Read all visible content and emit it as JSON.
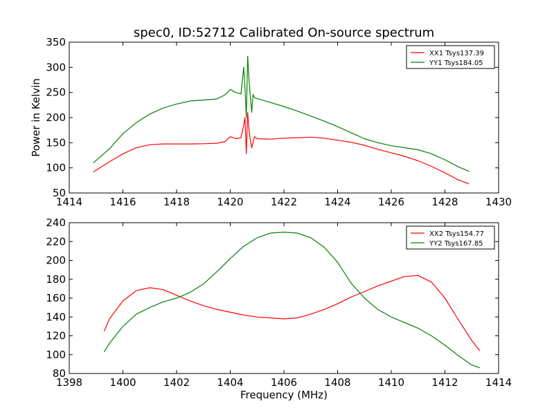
{
  "title": "spec0, ID:52712 Calibrated On-source spectrum",
  "colors": {
    "red": "#ff0000",
    "green": "#008000"
  },
  "chart_data": [
    {
      "type": "line",
      "title": "spec0, ID:52712 Calibrated On-source spectrum",
      "xlabel": "",
      "ylabel": "Power in Kelvin",
      "xlim": [
        1414,
        1430
      ],
      "ylim": [
        50,
        350
      ],
      "xticks": [
        1414,
        1416,
        1418,
        1420,
        1422,
        1424,
        1426,
        1428,
        1430
      ],
      "yticks": [
        50,
        100,
        150,
        200,
        250,
        300,
        350
      ],
      "legend": "top-right",
      "series": [
        {
          "name": "XX1 Tsys137.39",
          "color": "#ff0000",
          "x": [
            1414.9,
            1415.5,
            1416.0,
            1416.5,
            1417.0,
            1417.5,
            1418.0,
            1418.5,
            1419.0,
            1419.5,
            1419.8,
            1420.0,
            1420.2,
            1420.4,
            1420.5,
            1420.55,
            1420.6,
            1420.65,
            1420.7,
            1420.75,
            1420.8,
            1420.85,
            1420.9,
            1421.0,
            1421.5,
            1422.0,
            1422.5,
            1423.0,
            1423.5,
            1424.0,
            1424.5,
            1425.0,
            1425.5,
            1426.0,
            1426.5,
            1427.0,
            1427.5,
            1428.0,
            1428.5,
            1428.9
          ],
          "y": [
            92,
            112,
            128,
            140,
            146,
            147.5,
            147.5,
            147.5,
            148,
            149,
            152,
            162,
            158,
            160,
            185,
            200,
            128,
            210,
            175,
            155,
            140,
            150,
            162,
            158,
            157,
            159,
            160,
            161,
            159,
            155,
            151,
            145,
            137,
            130,
            123,
            114,
            103,
            90,
            76,
            68
          ]
        },
        {
          "name": "YY1 Tsys184.05",
          "color": "#008000",
          "x": [
            1414.9,
            1415.5,
            1416.0,
            1416.5,
            1417.0,
            1417.5,
            1418.0,
            1418.5,
            1419.0,
            1419.5,
            1419.8,
            1420.0,
            1420.2,
            1420.4,
            1420.5,
            1420.55,
            1420.6,
            1420.65,
            1420.7,
            1420.75,
            1420.8,
            1420.85,
            1420.9,
            1421.0,
            1421.5,
            1422.0,
            1422.5,
            1423.0,
            1423.5,
            1424.0,
            1424.5,
            1425.0,
            1425.5,
            1426.0,
            1426.5,
            1427.0,
            1427.5,
            1428.0,
            1428.5,
            1428.9
          ],
          "y": [
            110,
            138,
            168,
            190,
            207,
            219,
            227,
            233,
            235,
            237,
            245,
            256,
            250,
            247,
            300,
            260,
            200,
            322,
            275,
            240,
            210,
            246,
            240,
            238,
            230,
            222,
            213,
            203,
            193,
            182,
            170,
            158,
            150,
            144,
            140,
            136,
            128,
            116,
            102,
            93
          ]
        }
      ]
    },
    {
      "type": "line",
      "title": "",
      "xlabel": "Frequency (MHz)",
      "ylabel": "",
      "xlim": [
        1398,
        1414
      ],
      "ylim": [
        80,
        240
      ],
      "xticks": [
        1398,
        1400,
        1402,
        1404,
        1406,
        1408,
        1410,
        1412,
        1414
      ],
      "yticks": [
        80,
        100,
        120,
        140,
        160,
        180,
        200,
        220,
        240
      ],
      "legend": "top-right",
      "series": [
        {
          "name": "XX2 Tsys154.77",
          "color": "#ff0000",
          "x": [
            1399.3,
            1399.5,
            1400.0,
            1400.5,
            1401.0,
            1401.5,
            1402.0,
            1402.5,
            1403.0,
            1403.5,
            1404.0,
            1404.5,
            1405.0,
            1405.5,
            1406.0,
            1406.5,
            1407.0,
            1407.5,
            1408.0,
            1408.5,
            1409.0,
            1409.5,
            1410.0,
            1410.5,
            1411.0,
            1411.5,
            1412.0,
            1412.5,
            1413.0,
            1413.3
          ],
          "y": [
            125,
            138,
            157,
            168,
            171,
            169,
            163,
            157,
            152,
            148,
            145,
            142,
            140,
            139,
            138,
            139,
            143,
            148,
            154,
            161,
            167,
            173,
            178,
            183,
            184,
            177,
            160,
            137,
            115,
            104
          ]
        },
        {
          "name": "YY2 Tsys167.85",
          "color": "#008000",
          "x": [
            1399.3,
            1399.5,
            1400.0,
            1400.5,
            1401.0,
            1401.5,
            1402.0,
            1402.5,
            1403.0,
            1403.5,
            1404.0,
            1404.5,
            1405.0,
            1405.5,
            1406.0,
            1406.5,
            1407.0,
            1407.5,
            1408.0,
            1408.5,
            1409.0,
            1409.5,
            1410.0,
            1410.5,
            1411.0,
            1411.5,
            1412.0,
            1412.5,
            1413.0,
            1413.3
          ],
          "y": [
            103,
            112,
            130,
            143,
            150,
            156,
            160,
            166,
            175,
            188,
            202,
            215,
            224,
            229,
            230,
            229,
            224,
            214,
            198,
            176,
            160,
            148,
            140,
            134,
            128,
            120,
            110,
            99,
            89,
            86
          ]
        }
      ]
    }
  ]
}
